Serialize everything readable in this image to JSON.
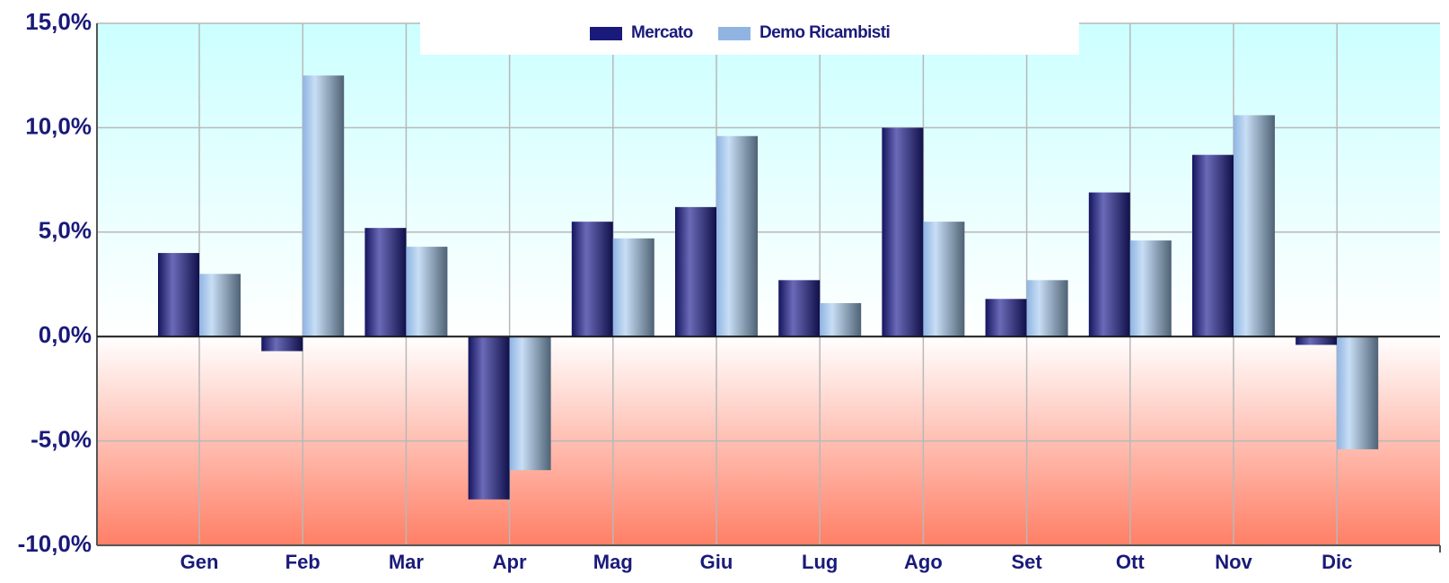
{
  "chart_data": {
    "type": "bar",
    "categories": [
      "Gen",
      "Feb",
      "Mar",
      "Apr",
      "Mag",
      "Giu",
      "Lug",
      "Ago",
      "Set",
      "Ott",
      "Nov",
      "Dic"
    ],
    "series": [
      {
        "name": "Mercato",
        "color": "#1a1a7a",
        "values": [
          4.0,
          -0.7,
          5.2,
          -7.8,
          5.5,
          6.2,
          2.7,
          10.0,
          1.8,
          6.9,
          8.7,
          -0.4
        ]
      },
      {
        "name": "Demo Ricambisti",
        "color": "#8fb4e2",
        "values": [
          3.0,
          12.5,
          4.3,
          -6.4,
          4.7,
          9.6,
          1.6,
          5.5,
          2.7,
          4.6,
          10.6,
          -5.4
        ]
      }
    ],
    "ylim": [
      -10,
      15
    ],
    "yticks": [
      15,
      10,
      5,
      0,
      -5,
      -10
    ],
    "ytick_labels": [
      "15,0%",
      "10,0%",
      "5,0%",
      "0,0%",
      "-5,0%",
      "-10,0%"
    ],
    "grid": true,
    "legend_position": "top-center",
    "background": {
      "positive_top": "#ccffff",
      "positive_bottom": "#ffffff",
      "negative_top": "#ffffff",
      "negative_bottom": "#ff7f66"
    }
  }
}
